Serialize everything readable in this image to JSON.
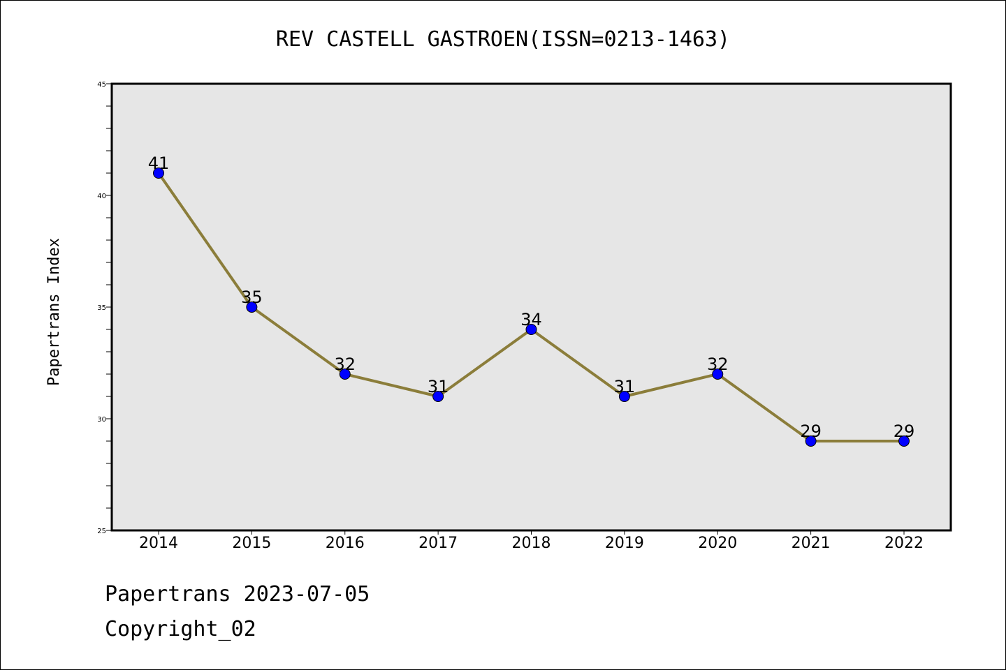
{
  "chart_data": {
    "type": "line",
    "title": "REV CASTELL GASTROEN(ISSN=0213-1463)",
    "xlabel": "",
    "ylabel": "Papertrans Index",
    "categories": [
      "2014",
      "2015",
      "2016",
      "2017",
      "2018",
      "2019",
      "2020",
      "2021",
      "2022"
    ],
    "series": [
      {
        "name": "Papertrans Index",
        "values": [
          41,
          35,
          32,
          31,
          34,
          31,
          32,
          29,
          29
        ]
      }
    ],
    "ylim": [
      25,
      45
    ],
    "yticks": [
      25,
      30,
      35,
      40,
      45
    ],
    "grid": false,
    "colors": {
      "line": "#8B7D3A",
      "marker": "#0000FF",
      "plot_bg": "#E6E6E6"
    }
  },
  "footer": {
    "line1": "Papertrans 2023-07-05",
    "line2": "Copyright_02"
  }
}
